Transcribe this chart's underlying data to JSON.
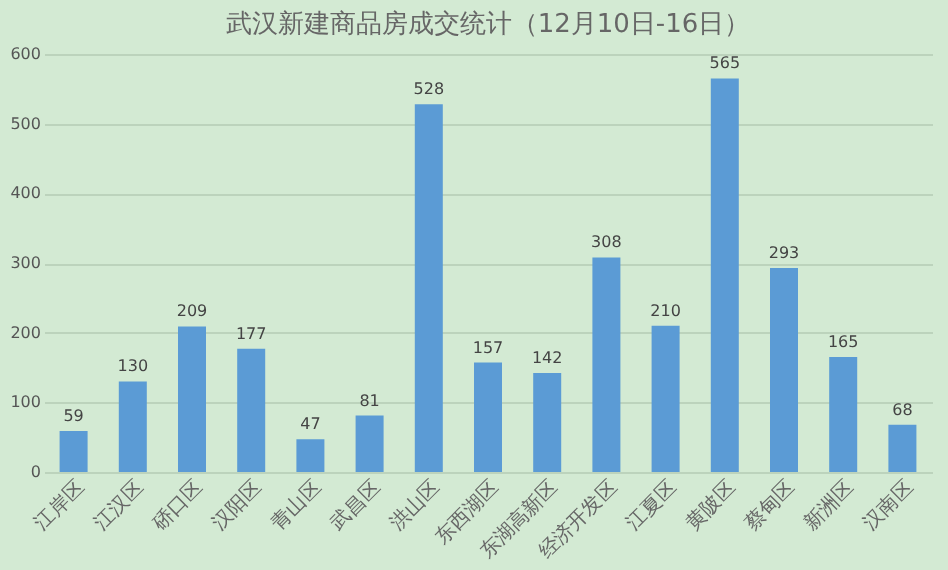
{
  "chart_data": {
    "type": "bar",
    "title": "武汉新建商品房成交统计（12月10日-16日）",
    "categories": [
      "江岸区",
      "江汉区",
      "硚口区",
      "汉阳区",
      "青山区",
      "武昌区",
      "洪山区",
      "东西湖区",
      "东湖高新区",
      "经济开发区",
      "江夏区",
      "黄陂区",
      "蔡甸区",
      "新洲区",
      "汉南区"
    ],
    "values": [
      59,
      130,
      209,
      177,
      47,
      81,
      528,
      157,
      142,
      308,
      210,
      565,
      293,
      165,
      68
    ],
    "color": "#5b9bd5",
    "data_labels": true,
    "ylim": [
      0,
      600
    ],
    "yticks": [
      0,
      100,
      200,
      300,
      400,
      500,
      600
    ],
    "grid": "y"
  }
}
